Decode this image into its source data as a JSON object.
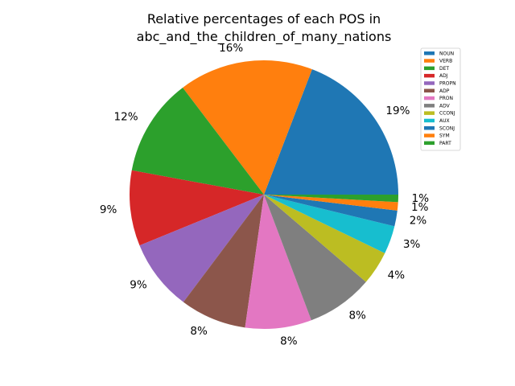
{
  "chart_data": {
    "type": "pie",
    "title": "Relative percentages of each POS in",
    "subtitle": "abc_and_the_children_of_many_nations",
    "legend_position": "top-right",
    "slices": [
      {
        "label": "NOUN",
        "value": 19.2,
        "pct_label": "19%",
        "color": "#1f77b4"
      },
      {
        "label": "VERB",
        "value": 16.2,
        "pct_label": "16%",
        "color": "#ff7f0e"
      },
      {
        "label": "DET",
        "value": 11.8,
        "pct_label": "12%",
        "color": "#2ca02c"
      },
      {
        "label": "ADJ",
        "value": 9.1,
        "pct_label": "9%",
        "color": "#d62728"
      },
      {
        "label": "PROPN",
        "value": 8.6,
        "pct_label": "9%",
        "color": "#9467bd"
      },
      {
        "label": "ADP",
        "value": 8.0,
        "pct_label": "8%",
        "color": "#8c564b"
      },
      {
        "label": "PRON",
        "value": 8.0,
        "pct_label": "8%",
        "color": "#e377c2"
      },
      {
        "label": "ADV",
        "value": 8.0,
        "pct_label": "8%",
        "color": "#7f7f7f"
      },
      {
        "label": "CCONJ",
        "value": 4.1,
        "pct_label": "4%",
        "color": "#bcbd22"
      },
      {
        "label": "AUX",
        "value": 3.4,
        "pct_label": "3%",
        "color": "#17becf"
      },
      {
        "label": "SCONJ",
        "value": 1.9,
        "pct_label": "2%",
        "color": "#1f77b4"
      },
      {
        "label": "SYM",
        "value": 1.0,
        "pct_label": "1%",
        "color": "#ff7f0e"
      },
      {
        "label": "PART",
        "value": 0.9,
        "pct_label": "1%",
        "color": "#2ca02c"
      }
    ]
  }
}
